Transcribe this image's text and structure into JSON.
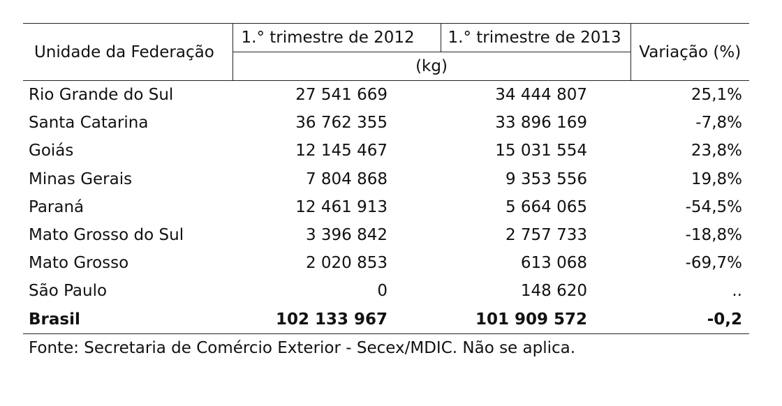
{
  "table": {
    "headers": {
      "state": "Unidade da Federação",
      "period_2012": "1.° trimestre de 2012",
      "period_2013": "1.° trimestre de 2013",
      "variation": "Variação (%)",
      "unit": "(kg)"
    },
    "rows": [
      {
        "state": "Rio Grande do Sul",
        "q1_2012": "27 541 669",
        "q1_2013": "34 444 807",
        "variation": "25,1%"
      },
      {
        "state": "Santa Catarina",
        "q1_2012": "36 762 355",
        "q1_2013": "33 896 169",
        "variation": "-7,8%"
      },
      {
        "state": "Goiás",
        "q1_2012": "12 145 467",
        "q1_2013": "15 031 554",
        "variation": "23,8%"
      },
      {
        "state": "Minas Gerais",
        "q1_2012": "7 804 868",
        "q1_2013": "9 353 556",
        "variation": "19,8%"
      },
      {
        "state": "Paraná",
        "q1_2012": "12 461 913",
        "q1_2013": "5 664 065",
        "variation": "-54,5%"
      },
      {
        "state": "Mato Grosso do Sul",
        "q1_2012": "3 396 842",
        "q1_2013": "2 757 733",
        "variation": "-18,8%"
      },
      {
        "state": "Mato Grosso",
        "q1_2012": "2 020 853",
        "q1_2013": "613 068",
        "variation": "-69,7%"
      },
      {
        "state": "São Paulo",
        "q1_2012": "0",
        "q1_2013": "148 620",
        "variation": ".."
      }
    ],
    "total": {
      "state": "Brasil",
      "q1_2012": "102 133 967",
      "q1_2013": "101 909 572",
      "variation": "-0,2"
    }
  },
  "source": "Fonte: Secretaria de Comércio Exterior - Secex/MDIC. Não se aplica."
}
